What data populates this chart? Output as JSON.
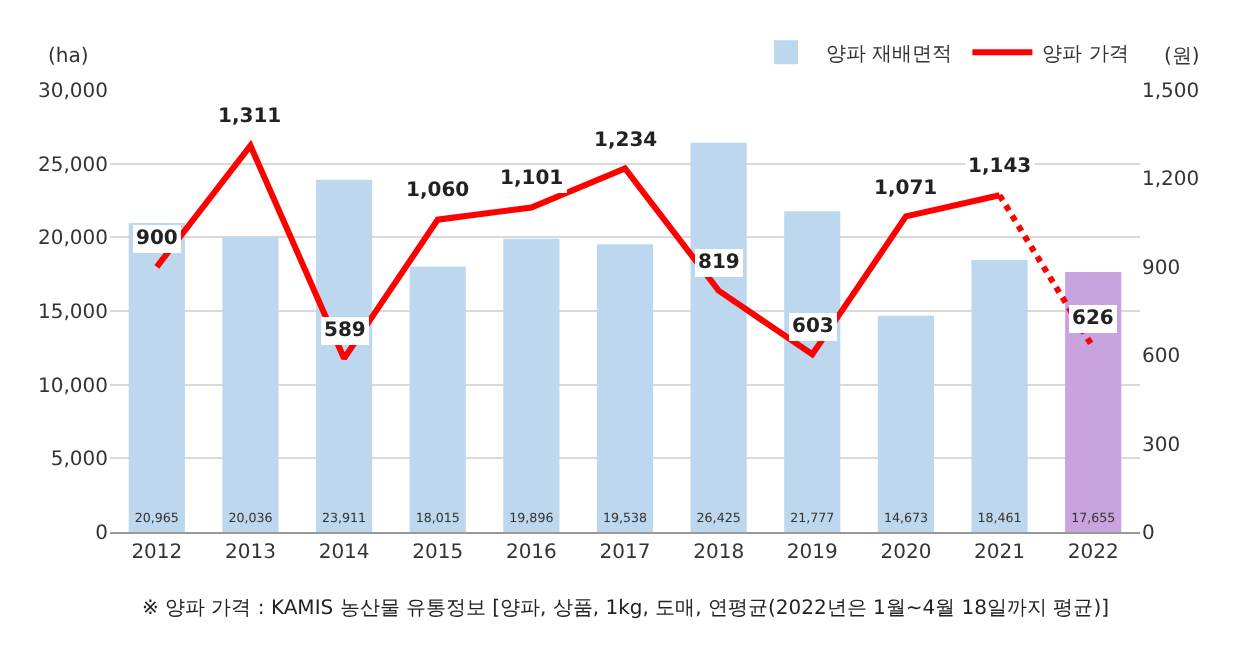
{
  "chart_data": {
    "type": "bar",
    "categories": [
      "2012",
      "2013",
      "2014",
      "2015",
      "2016",
      "2017",
      "2018",
      "2019",
      "2020",
      "2021",
      "2022"
    ],
    "ylabel": "(ha)",
    "y2label": "(원)",
    "ylim": [
      0,
      30000
    ],
    "yticks": [
      {
        "value": 0,
        "label": "0"
      },
      {
        "value": 5000,
        "label": "5,000"
      },
      {
        "value": 10000,
        "label": "10,000"
      },
      {
        "value": 15000,
        "label": "15,000"
      },
      {
        "value": 20000,
        "label": "20,000"
      },
      {
        "value": 25000,
        "label": "25,000"
      },
      {
        "value": 30000,
        "label": "30,000"
      }
    ],
    "y2lim": [
      0,
      1500
    ],
    "y2ticks": [
      0,
      300,
      600,
      900,
      {
        "value": 1200,
        "label": "1,200"
      },
      {
        "value": 1500,
        "label": "1,500"
      }
    ],
    "grid": "y",
    "legend": "top right",
    "series": [
      {
        "name": "양파 재배면적",
        "colors": [
          "#bdd7ee",
          "#bdd7ee",
          "#bdd7ee",
          "#bdd7ee",
          "#bdd7ee",
          "#bdd7ee",
          "#bdd7ee",
          "#bdd7ee",
          "#bdd7ee",
          "#bdd7ee",
          "#c9a3e0"
        ],
        "values": [
          20965,
          20036,
          23911,
          18015,
          19896,
          19538,
          26425,
          21777,
          14673,
          18461,
          17655
        ],
        "value_labels": [
          "20,965",
          "20,036",
          "23,911",
          "18,015",
          "19,896",
          "19,538",
          "26,425",
          "21,777",
          "14,673",
          "18,461",
          "17,655"
        ]
      },
      {
        "name": "양파 가격",
        "type": "line",
        "axis": "y2",
        "color": "#ff0000",
        "line_style": "solid",
        "values": [
          900,
          1311,
          589,
          1060,
          1101,
          1234,
          819,
          603,
          1071,
          1143,
          null
        ],
        "value_labels": [
          "900",
          "1,311",
          "589",
          "1,060",
          "1,101",
          "1,234",
          "819",
          "603",
          "1,071",
          "1,143",
          null
        ]
      },
      {
        "type": "line",
        "axis": "y2",
        "color": "#ff0000",
        "line_style": "dotted",
        "values": [
          null,
          null,
          null,
          null,
          null,
          null,
          null,
          null,
          null,
          1143,
          626
        ],
        "value_labels": [
          null,
          null,
          null,
          null,
          null,
          null,
          null,
          null,
          null,
          null,
          "626"
        ]
      }
    ],
    "annotations": [
      "※ 양파 가격 : KAMIS 농산물 유통정보 [양파, 상품, 1kg, 도매, 연평균(2022년은 1월~4월 18일까지 평균)]"
    ]
  }
}
